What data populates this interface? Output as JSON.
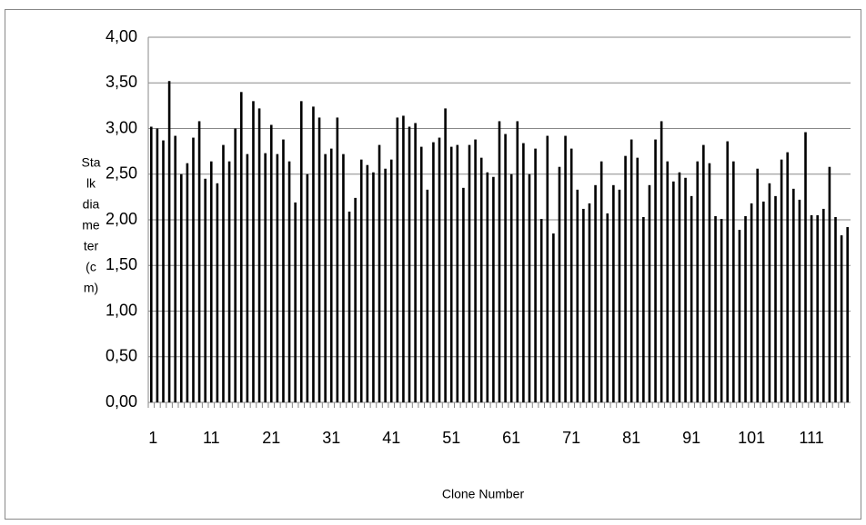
{
  "chart_data": {
    "type": "bar",
    "x_label": "Clone Number",
    "y_label_lines": [
      "Sta",
      "lk",
      "dia",
      "me",
      "ter",
      "(c",
      "m)"
    ],
    "categories": [
      "1",
      null,
      null,
      null,
      null,
      null,
      null,
      null,
      null,
      null,
      "11",
      null,
      null,
      null,
      null,
      null,
      null,
      null,
      null,
      null,
      "21",
      null,
      null,
      null,
      null,
      null,
      null,
      null,
      null,
      null,
      "31",
      null,
      null,
      null,
      null,
      null,
      null,
      null,
      null,
      null,
      "41",
      null,
      null,
      null,
      null,
      null,
      null,
      null,
      null,
      null,
      "51",
      null,
      null,
      null,
      null,
      null,
      null,
      null,
      null,
      null,
      "61",
      null,
      null,
      null,
      null,
      null,
      null,
      null,
      null,
      null,
      "71",
      null,
      null,
      null,
      null,
      null,
      null,
      null,
      null,
      null,
      "81",
      null,
      null,
      null,
      null,
      null,
      null,
      null,
      null,
      null,
      "91",
      null,
      null,
      null,
      null,
      null,
      null,
      null,
      null,
      null,
      "101",
      null,
      null,
      null,
      null,
      null,
      null,
      null,
      null,
      null,
      "111",
      null,
      null,
      null,
      null,
      null,
      null
    ],
    "values": [
      3.02,
      3.0,
      2.87,
      3.52,
      2.92,
      2.5,
      2.62,
      2.9,
      3.08,
      2.45,
      2.64,
      2.4,
      2.82,
      2.64,
      3.0,
      3.4,
      2.72,
      3.3,
      3.22,
      2.73,
      3.04,
      2.72,
      2.88,
      2.64,
      2.19,
      3.3,
      2.5,
      3.24,
      3.12,
      2.72,
      2.78,
      3.12,
      2.72,
      2.09,
      2.24,
      2.66,
      2.6,
      2.52,
      2.82,
      2.56,
      2.66,
      3.12,
      3.14,
      3.02,
      3.06,
      2.8,
      2.33,
      2.85,
      2.9,
      3.22,
      2.8,
      2.82,
      2.35,
      2.82,
      2.88,
      2.68,
      2.52,
      2.47,
      3.08,
      2.94,
      2.5,
      3.08,
      2.84,
      2.5,
      2.78,
      2.01,
      2.92,
      1.85,
      2.58,
      2.92,
      2.78,
      2.33,
      2.12,
      2.18,
      2.38,
      2.64,
      2.07,
      2.38,
      2.33,
      2.7,
      2.88,
      2.68,
      2.03,
      2.38,
      2.88,
      3.08,
      2.64,
      2.42,
      2.52,
      2.46,
      2.26,
      2.64,
      2.82,
      2.62,
      2.04,
      2.01,
      2.86,
      2.64,
      1.89,
      2.04,
      2.18,
      2.56,
      2.2,
      2.4,
      2.26,
      2.66,
      2.74,
      2.34,
      2.22,
      2.96,
      2.05,
      2.05,
      2.12,
      2.58,
      2.03,
      1.83,
      1.92
    ],
    "color": "#000000",
    "ylim": [
      0,
      4
    ],
    "yticks": [
      {
        "value": 0,
        "label": "0,00"
      },
      {
        "value": 0.5,
        "label": "0,50"
      },
      {
        "value": 1,
        "label": "1,00"
      },
      {
        "value": 1.5,
        "label": "1,50"
      },
      {
        "value": 2,
        "label": "2,00"
      },
      {
        "value": 2.5,
        "label": "2,50"
      },
      {
        "value": 3,
        "label": "3,00"
      },
      {
        "value": 3.5,
        "label": "3,50"
      },
      {
        "value": 4,
        "label": "4,00"
      }
    ],
    "grid": true
  }
}
